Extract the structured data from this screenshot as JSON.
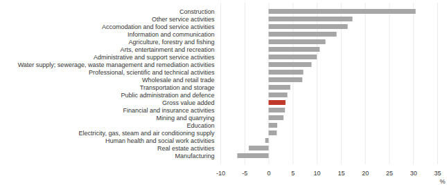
{
  "chart_data": {
    "type": "bar",
    "orientation": "horizontal",
    "categories": [
      "Construction",
      "Other service activities",
      "Accomodation and food service activities",
      "Information and communication",
      "Agriculture, forestry and fishing",
      "Arts, entertainment and recreation",
      "Administrative and support service activities",
      "Water supply; sewerage, waste management and remediation activities",
      "Professional, scientific and technical activities",
      "Wholesale and retail trade",
      "Transportation and storage",
      "Public administration and defence",
      "Gross value added",
      "Financial and insurance activities",
      "Mining and quarrying",
      "Education",
      "Electricity, gas, steam and air conditioning supply",
      "Human health and social work activities",
      "Real estate activities",
      "Manufacturing"
    ],
    "values": [
      30.5,
      17.4,
      16.4,
      14.1,
      11.8,
      10.6,
      10.0,
      8.9,
      7.2,
      7.0,
      4.5,
      3.9,
      3.5,
      3.4,
      3.1,
      1.8,
      1.7,
      -0.7,
      -4.1,
      -6.5
    ],
    "colors": [
      "#a6a6a6",
      "#a6a6a6",
      "#a6a6a6",
      "#a6a6a6",
      "#a6a6a6",
      "#a6a6a6",
      "#a6a6a6",
      "#a6a6a6",
      "#a6a6a6",
      "#a6a6a6",
      "#a6a6a6",
      "#a6a6a6",
      "#c0392b",
      "#a6a6a6",
      "#a6a6a6",
      "#a6a6a6",
      "#a6a6a6",
      "#a6a6a6",
      "#a6a6a6",
      "#a6a6a6"
    ],
    "x_label": "%",
    "xlim": [
      -10,
      35
    ],
    "xticks": [
      -10,
      -5,
      0,
      5,
      10,
      15,
      20,
      25,
      30,
      35
    ],
    "grid": true
  }
}
